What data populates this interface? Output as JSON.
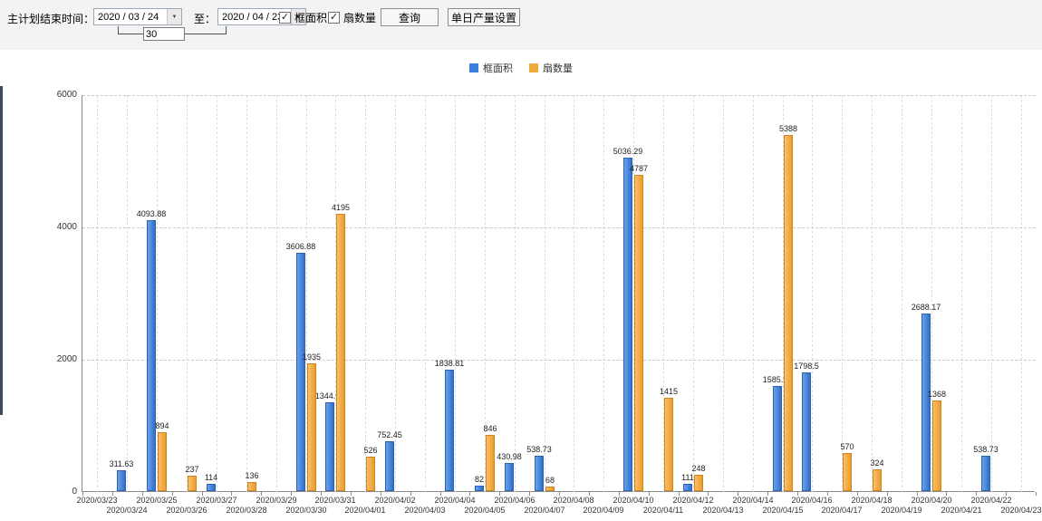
{
  "toolbar": {
    "label_plan_end": "主计划结束时间：",
    "date_from": "2020 / 03 / 24",
    "to_label": "至：",
    "date_to": "2020 / 04 / 23",
    "days_value": "30",
    "checkbox_area": {
      "label": "框面积",
      "checked": true
    },
    "checkbox_fans": {
      "label": "扇数量",
      "checked": true
    },
    "query_button": "查询",
    "daily_output_button": "单日产量设置"
  },
  "icons": {
    "dropdown_arrow": "▼",
    "checkbox_check": "✓"
  },
  "legend": [
    {
      "label": "框面积",
      "color": "#3b7dd8"
    },
    {
      "label": "扇数量",
      "color": "#f2a93b"
    }
  ],
  "chart_data": {
    "type": "bar",
    "title": "",
    "xlabel": "",
    "ylabel": "",
    "ylim": [
      0,
      6000
    ],
    "yticks": [
      0,
      2000,
      4000,
      6000
    ],
    "grid": "dashed",
    "legend_position": "top",
    "categories": [
      "2020/03/23",
      "2020/03/24",
      "2020/03/25",
      "2020/03/26",
      "2020/03/27",
      "2020/03/28",
      "2020/03/29",
      "2020/03/30",
      "2020/03/31",
      "2020/04/01",
      "2020/04/02",
      "2020/04/03",
      "2020/04/04",
      "2020/04/05",
      "2020/04/06",
      "2020/04/07",
      "2020/04/08",
      "2020/04/09",
      "2020/04/10",
      "2020/04/11",
      "2020/04/12",
      "2020/04/13",
      "2020/04/14",
      "2020/04/15",
      "2020/04/16",
      "2020/04/17",
      "2020/04/18",
      "2020/04/19",
      "2020/04/20",
      "2020/04/21",
      "2020/04/22",
      "2020/04/23"
    ],
    "series": [
      {
        "name": "框面积",
        "color": "#3b7dd8",
        "border_color": "#2b63b0",
        "values": [
          null,
          311.63,
          4093.88,
          null,
          114,
          null,
          null,
          3606.88,
          1344.95,
          null,
          752.45,
          null,
          1838.81,
          82,
          430.98,
          538.73,
          null,
          null,
          5036.29,
          null,
          111,
          null,
          null,
          1585.96,
          1798.5,
          null,
          null,
          null,
          2688.17,
          null,
          538.73,
          null
        ]
      },
      {
        "name": "扇数量",
        "color": "#f2a93b",
        "border_color": "#cc8322",
        "values": [
          null,
          null,
          894,
          237,
          null,
          136,
          null,
          1935,
          4195,
          526,
          null,
          null,
          null,
          846,
          null,
          68,
          null,
          null,
          4787,
          1415,
          248,
          null,
          null,
          5388,
          null,
          570,
          324,
          null,
          1368,
          null,
          null,
          null
        ]
      }
    ]
  }
}
